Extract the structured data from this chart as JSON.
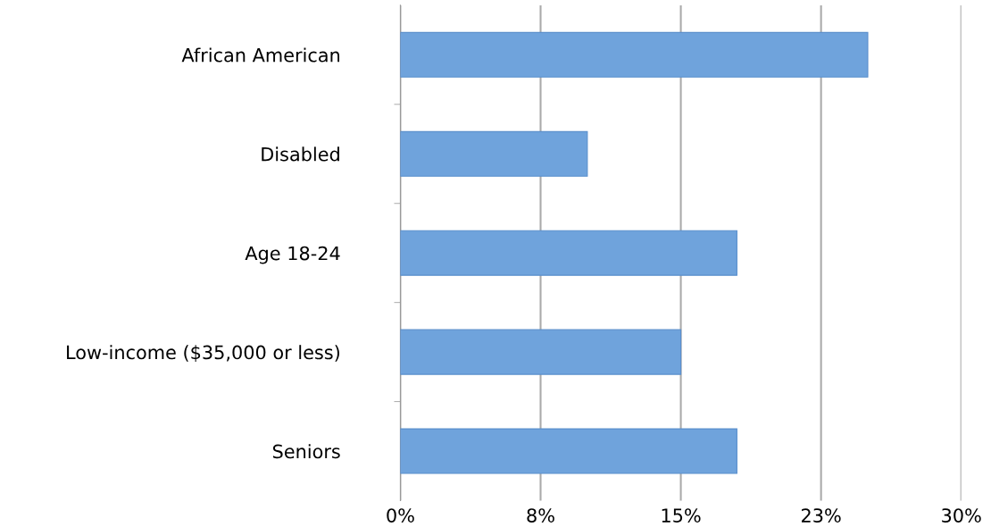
{
  "chart_data": {
    "type": "bar",
    "orientation": "horizontal",
    "categories": [
      "African American",
      "Disabled",
      "Age 18-24",
      "Low-income ($35,000 or less)",
      "Seniors"
    ],
    "values": [
      25,
      10,
      18,
      15,
      18
    ],
    "color": "#6fa3dc",
    "xlim": [
      0,
      30
    ],
    "xticks": [
      {
        "value": 0,
        "label": "0%"
      },
      {
        "value": 7.5,
        "label": "8%"
      },
      {
        "value": 15,
        "label": "15%"
      },
      {
        "value": 22.5,
        "label": "23%"
      },
      {
        "value": 30,
        "label": "30%"
      }
    ],
    "grid": "x",
    "legend": false
  }
}
